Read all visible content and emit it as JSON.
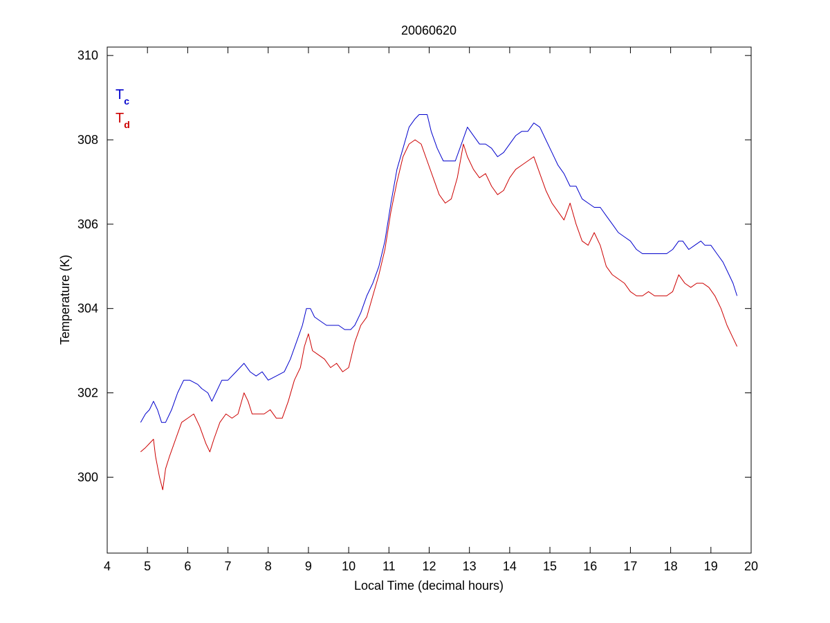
{
  "chart_data": {
    "type": "line",
    "title": "20060620",
    "xlabel": "Local Time (decimal hours)",
    "ylabel": "Temperature (K)",
    "xlim": [
      4,
      20
    ],
    "ylim": [
      298.2,
      310.2
    ],
    "xticks": [
      4,
      5,
      6,
      7,
      8,
      9,
      10,
      11,
      12,
      13,
      14,
      15,
      16,
      17,
      18,
      19,
      20
    ],
    "yticks": [
      300,
      302,
      304,
      306,
      308,
      310
    ],
    "grid": false,
    "legend_position": "top-left",
    "series": [
      {
        "name": "T",
        "subscript": "c",
        "color": "#0000cc",
        "x": [
          4.83,
          4.95,
          5.05,
          5.15,
          5.25,
          5.35,
          5.45,
          5.6,
          5.75,
          5.9,
          6.05,
          6.25,
          6.35,
          6.5,
          6.6,
          6.7,
          6.85,
          7.0,
          7.2,
          7.4,
          7.55,
          7.7,
          7.85,
          8.0,
          8.2,
          8.4,
          8.55,
          8.7,
          8.85,
          8.95,
          9.05,
          9.15,
          9.3,
          9.45,
          9.6,
          9.75,
          9.9,
          10.05,
          10.15,
          10.3,
          10.45,
          10.6,
          10.75,
          10.9,
          11.05,
          11.2,
          11.35,
          11.5,
          11.65,
          11.75,
          11.85,
          11.95,
          12.05,
          12.2,
          12.35,
          12.5,
          12.65,
          12.8,
          12.95,
          13.1,
          13.25,
          13.4,
          13.55,
          13.7,
          13.85,
          14.0,
          14.15,
          14.3,
          14.45,
          14.6,
          14.75,
          14.9,
          15.05,
          15.2,
          15.35,
          15.5,
          15.65,
          15.8,
          15.95,
          16.1,
          16.25,
          16.4,
          16.55,
          16.7,
          16.85,
          17.0,
          17.15,
          17.3,
          17.45,
          17.6,
          17.75,
          17.9,
          18.05,
          18.2,
          18.3,
          18.45,
          18.6,
          18.75,
          18.85,
          19.0,
          19.15,
          19.3,
          19.45,
          19.55,
          19.65
        ],
        "y": [
          301.3,
          301.5,
          301.6,
          301.8,
          301.6,
          301.3,
          301.3,
          301.6,
          302.0,
          302.3,
          302.3,
          302.2,
          302.1,
          302.0,
          301.8,
          302.0,
          302.3,
          302.3,
          302.5,
          302.7,
          302.5,
          302.4,
          302.5,
          302.3,
          302.4,
          302.5,
          302.8,
          303.2,
          303.6,
          304.0,
          304.0,
          303.8,
          303.7,
          303.6,
          303.6,
          303.6,
          303.5,
          303.5,
          303.6,
          303.9,
          304.3,
          304.6,
          305.0,
          305.6,
          306.5,
          307.3,
          307.8,
          308.3,
          308.5,
          308.6,
          308.6,
          308.6,
          308.2,
          307.8,
          307.5,
          307.5,
          307.5,
          307.9,
          308.3,
          308.1,
          307.9,
          307.9,
          307.8,
          307.6,
          307.7,
          307.9,
          308.1,
          308.2,
          308.2,
          308.4,
          308.3,
          308.0,
          307.7,
          307.4,
          307.2,
          306.9,
          306.9,
          306.6,
          306.5,
          306.4,
          306.4,
          306.2,
          306.0,
          305.8,
          305.7,
          305.6,
          305.4,
          305.3,
          305.3,
          305.3,
          305.3,
          305.3,
          305.4,
          305.6,
          305.6,
          305.4,
          305.5,
          305.6,
          305.5,
          305.5,
          305.3,
          305.1,
          304.8,
          304.6,
          304.3
        ]
      },
      {
        "name": "T",
        "subscript": "d",
        "color": "#cc0000",
        "x": [
          4.83,
          4.95,
          5.05,
          5.15,
          5.2,
          5.3,
          5.38,
          5.45,
          5.55,
          5.7,
          5.85,
          6.0,
          6.15,
          6.3,
          6.45,
          6.55,
          6.65,
          6.8,
          6.95,
          7.1,
          7.25,
          7.4,
          7.5,
          7.6,
          7.75,
          7.9,
          8.05,
          8.2,
          8.35,
          8.5,
          8.65,
          8.8,
          8.9,
          9.0,
          9.1,
          9.25,
          9.4,
          9.55,
          9.7,
          9.85,
          10.0,
          10.15,
          10.3,
          10.45,
          10.6,
          10.75,
          10.9,
          11.05,
          11.2,
          11.35,
          11.5,
          11.65,
          11.8,
          11.95,
          12.1,
          12.25,
          12.4,
          12.55,
          12.7,
          12.85,
          12.95,
          13.1,
          13.25,
          13.4,
          13.55,
          13.7,
          13.85,
          14.0,
          14.15,
          14.3,
          14.45,
          14.6,
          14.75,
          14.9,
          15.05,
          15.2,
          15.35,
          15.5,
          15.65,
          15.8,
          15.95,
          16.1,
          16.25,
          16.4,
          16.55,
          16.7,
          16.85,
          17.0,
          17.15,
          17.3,
          17.45,
          17.6,
          17.75,
          17.9,
          18.05,
          18.2,
          18.35,
          18.5,
          18.65,
          18.8,
          18.95,
          19.1,
          19.25,
          19.4,
          19.55,
          19.65
        ],
        "y": [
          300.6,
          300.7,
          300.8,
          300.9,
          300.5,
          300.0,
          299.7,
          300.2,
          300.5,
          300.9,
          301.3,
          301.4,
          301.5,
          301.2,
          300.8,
          300.6,
          300.9,
          301.3,
          301.5,
          301.4,
          301.5,
          302.0,
          301.8,
          301.5,
          301.5,
          301.5,
          301.6,
          301.4,
          301.4,
          301.8,
          302.3,
          302.6,
          303.1,
          303.4,
          303.0,
          302.9,
          302.8,
          302.6,
          302.7,
          302.5,
          302.6,
          303.2,
          303.6,
          303.8,
          304.3,
          304.8,
          305.4,
          306.3,
          307.0,
          307.6,
          307.9,
          308.0,
          307.9,
          307.5,
          307.1,
          306.7,
          306.5,
          306.6,
          307.1,
          307.9,
          307.6,
          307.3,
          307.1,
          307.2,
          306.9,
          306.7,
          306.8,
          307.1,
          307.3,
          307.4,
          307.5,
          307.6,
          307.2,
          306.8,
          306.5,
          306.3,
          306.1,
          306.5,
          306.0,
          305.6,
          305.5,
          305.8,
          305.5,
          305.0,
          304.8,
          304.7,
          304.6,
          304.4,
          304.3,
          304.3,
          304.4,
          304.3,
          304.3,
          304.3,
          304.4,
          304.8,
          304.6,
          304.5,
          304.6,
          304.6,
          304.5,
          304.3,
          304.0,
          303.6,
          303.3,
          303.1
        ]
      }
    ]
  }
}
